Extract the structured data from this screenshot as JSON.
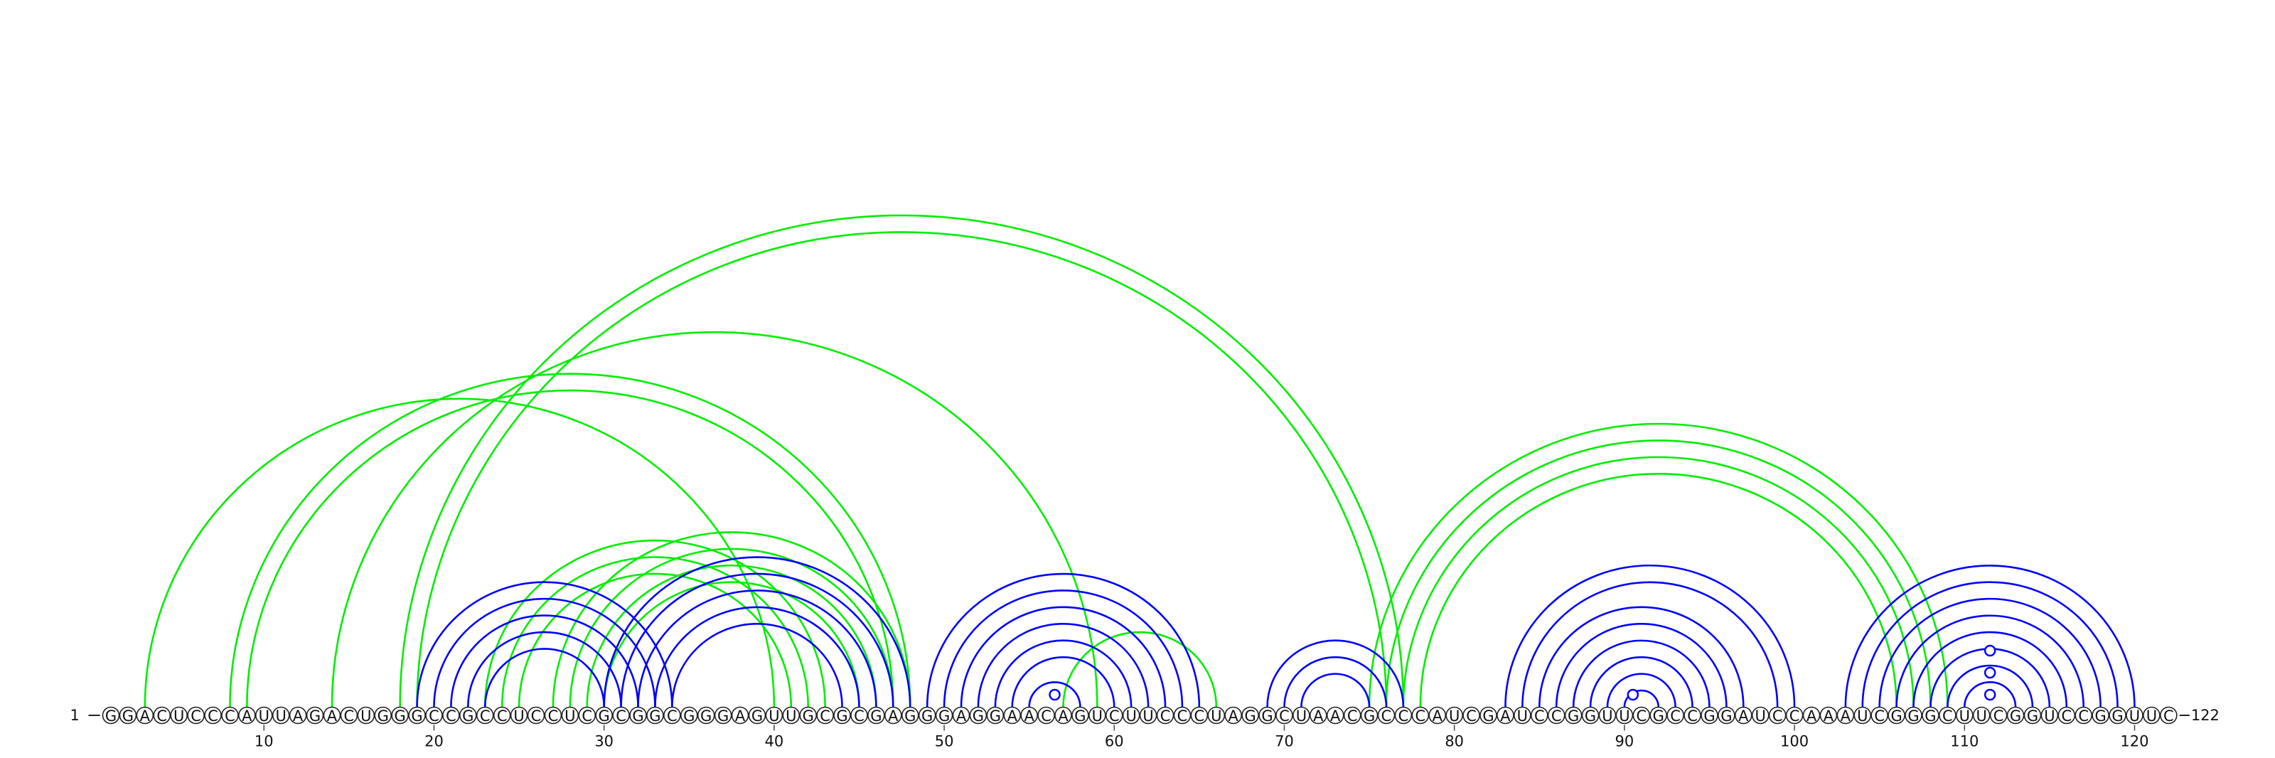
{
  "diagram": {
    "type": "rna-arc-diagram",
    "sequence": "GGACUCCCAUUAGACUGGGCCGCCUCCUCGCGGCGGGAGUUGCGCGAGGGAGGAACAGUCUUCCCUAGGCUAACGCCCAUCGAUCCGGUUCGCCGGAUCCAAAUCGGGCUUCGGUCCGGUUC",
    "start_label": "1",
    "end_label": "122",
    "position_ticks": [
      10,
      20,
      30,
      40,
      50,
      60,
      70,
      80,
      90,
      100,
      110,
      120
    ],
    "colors": {
      "blue": "#0000ff",
      "green": "#00ee00",
      "outline": "#222222"
    },
    "helices_blue": [
      {
        "i": 19,
        "j": 34,
        "len": 3
      },
      {
        "i": 22,
        "j": 31,
        "len": 2
      },
      {
        "i": 30,
        "j": 48,
        "len": 5
      },
      {
        "i": 49,
        "j": 65,
        "len": 4
      },
      {
        "i": 53,
        "j": 61,
        "len": 2
      },
      {
        "i": 55,
        "j": 58,
        "len": 1
      },
      {
        "i": 69,
        "j": 77,
        "len": 3
      },
      {
        "i": 83,
        "j": 100,
        "len": 2
      },
      {
        "i": 85,
        "j": 97,
        "len": 5
      },
      {
        "i": 90,
        "j": 92,
        "len": 1
      },
      {
        "i": 103,
        "j": 120,
        "len": 3
      },
      {
        "i": 106,
        "j": 117,
        "len": 5
      }
    ],
    "helices_green": [
      {
        "i": 3,
        "j": 40,
        "len": 1
      },
      {
        "i": 8,
        "j": 48,
        "len": 2
      },
      {
        "i": 14,
        "j": 59,
        "len": 1
      },
      {
        "i": 18,
        "j": 77,
        "len": 2
      },
      {
        "i": 23,
        "j": 43,
        "len": 3
      },
      {
        "i": 27,
        "j": 48,
        "len": 4
      },
      {
        "i": 57,
        "j": 66,
        "len": 1
      },
      {
        "i": 75,
        "j": 109,
        "len": 4
      }
    ],
    "unpaired_marks": [
      56,
      90,
      111,
      111,
      111
    ]
  }
}
